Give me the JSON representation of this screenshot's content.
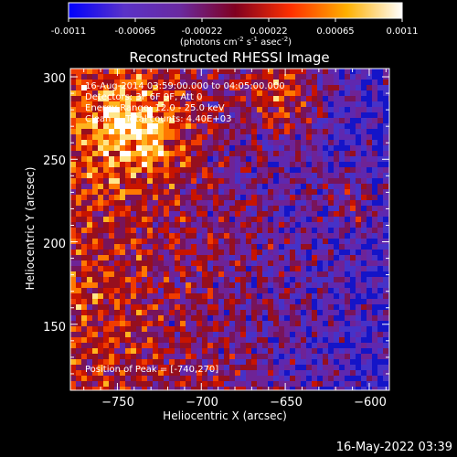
{
  "colorbar": {
    "tick_labels": [
      "-0.0011",
      "-0.00065",
      "-0.00022",
      "0.00022",
      "0.00065",
      "0.0011"
    ],
    "range": [
      -0.0011,
      0.0011
    ],
    "colors": [
      "#0000ff",
      "#5a32c8",
      "#6a2aa0",
      "#800020",
      "#ff3000",
      "#ffb000",
      "#ffffff"
    ]
  },
  "units_prefix": "(photons cm",
  "units_sup1": "-2",
  "units_mid": " s",
  "units_sup2": "-1",
  "units_mid2": " asec",
  "units_sup3": "-2",
  "units_suffix": ")",
  "title": "Reconstructed RHESSI Image",
  "annotations": {
    "line1": "16-Aug-2014 03:59:00.000 to 04:05:00.000",
    "line2": "Detectors: 3F 6F 9F, Att 0",
    "line3": "Energy Range: 12.0 - 25.0 keV",
    "line4": "Clean     Total counts: 4.40E+03",
    "peak": "Position of Peak = [-740,270]"
  },
  "footer_date": "16-May-2022 03:39",
  "chart_data": {
    "type": "heatmap",
    "title": "Reconstructed RHESSI Image",
    "xlabel": "Heliocentric X (arcsec)",
    "ylabel": "Heliocentric Y (arcsec)",
    "xlim": [
      -778,
      -588
    ],
    "ylim": [
      110,
      305
    ],
    "x_ticks": [
      -750,
      -700,
      -650,
      -600
    ],
    "x_tick_labels": [
      "−750",
      "−700",
      "−650",
      "−600"
    ],
    "y_ticks": [
      150,
      200,
      250,
      300
    ],
    "y_tick_labels": [
      "150",
      "200",
      "250",
      "300"
    ],
    "peak": [
      -740,
      270
    ],
    "colorbar_range": [
      -0.0011,
      0.0011
    ]
  }
}
